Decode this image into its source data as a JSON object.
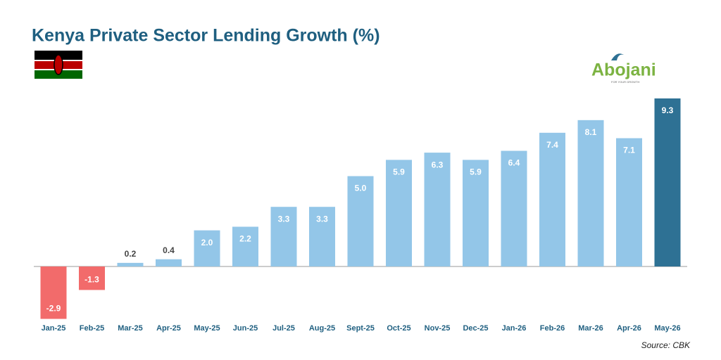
{
  "chart_data": {
    "type": "bar",
    "title": "Kenya Private Sector Lending Growth (%)",
    "categories": [
      "Jan-25",
      "Feb-25",
      "Mar-25",
      "Apr-25",
      "May-25",
      "Jun-25",
      "Jul-25",
      "Aug-25",
      "Sept-25",
      "Oct-25",
      "Nov-25",
      "Dec-25",
      "Jan-26",
      "Feb-26",
      "Mar-26",
      "Apr-26",
      "May-26"
    ],
    "values": [
      -2.9,
      -1.3,
      0.2,
      0.4,
      2.0,
      2.2,
      3.3,
      3.3,
      5.0,
      5.9,
      6.3,
      5.9,
      6.4,
      7.4,
      8.1,
      7.1,
      9.3
    ],
    "value_labels": [
      "-2.9",
      "-1.3",
      "0.2",
      "0.4",
      "2.0",
      "2.2",
      "3.3",
      "3.3",
      "5.0",
      "5.9",
      "6.3",
      "5.9",
      "6.4",
      "7.4",
      "8.1",
      "7.1",
      "9.3"
    ],
    "colors": [
      "#f26b6b",
      "#f26b6b",
      "#93c6e8",
      "#93c6e8",
      "#93c6e8",
      "#93c6e8",
      "#93c6e8",
      "#93c6e8",
      "#93c6e8",
      "#93c6e8",
      "#93c6e8",
      "#93c6e8",
      "#93c6e8",
      "#93c6e8",
      "#93c6e8",
      "#93c6e8",
      "#2e7194"
    ],
    "source": "Source: CBK"
  },
  "logo": {
    "name": "Abojani",
    "tagline": "FOR YOUR GROWTH"
  }
}
